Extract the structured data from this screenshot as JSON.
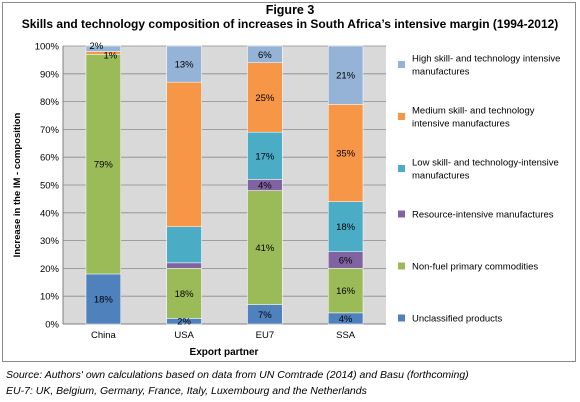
{
  "figure_label": "Figure 3",
  "source_note": "Source: Authors' own calculations based on data from UN Comtrade (2014) and Basu (forthcoming)",
  "eu7_note": "EU-7: UK, Belgium, Germany, France, Italy, Luxembourg and the Netherlands",
  "chart_data": {
    "type": "bar",
    "stacked": true,
    "title": "Skills and technology composition of increases in South Africa’s intensive margin (1994-2012)",
    "xlabel": "Export partner",
    "ylabel": "Increase in the IM - composition",
    "categories": [
      "China",
      "USA",
      "EU7",
      "SSA"
    ],
    "ylim": [
      0,
      100
    ],
    "yticks": [
      "0%",
      "10%",
      "20%",
      "30%",
      "40%",
      "50%",
      "60%",
      "70%",
      "80%",
      "90%",
      "100%"
    ],
    "grid": true,
    "legend_position": "right",
    "series": [
      {
        "name": "Unclassified products",
        "color": "#4f81bd",
        "values": [
          18,
          2,
          7,
          4
        ],
        "labels": [
          "18%",
          "2%",
          "7%",
          "4%"
        ]
      },
      {
        "name": "Non-fuel primary commodities",
        "color": "#9bbb59",
        "values": [
          79,
          18,
          41,
          16
        ],
        "labels": [
          "79%",
          "18%",
          "41%",
          "16%"
        ]
      },
      {
        "name": "Resource-intensive manufactures",
        "color": "#8064a2",
        "values": [
          0,
          2,
          4,
          6
        ],
        "labels": [
          "",
          "",
          "4%",
          "6%"
        ]
      },
      {
        "name": "Low skill- and technology-intensive manufactures",
        "color": "#4bacc6",
        "values": [
          0,
          13,
          17,
          18
        ],
        "labels": [
          "",
          "",
          "17%",
          "18%"
        ]
      },
      {
        "name": "Medium skill- and technology intensive manufactures",
        "color": "#f79646",
        "values": [
          1,
          52,
          25,
          35
        ],
        "labels": [
          "1%",
          "",
          "25%",
          "35%"
        ]
      },
      {
        "name": "High skill- and technology intensive manufactures",
        "color": "#95b3d7",
        "values": [
          2,
          13,
          6,
          21
        ],
        "labels": [
          "2%",
          "13%",
          "6%",
          "21%"
        ]
      }
    ],
    "legend": [
      {
        "series": 5,
        "lines": [
          "High skill- and technology intensive",
          "manufactures"
        ]
      },
      {
        "series": 4,
        "lines": [
          "Medium skill- and technology",
          "intensive manufactures"
        ]
      },
      {
        "series": 3,
        "lines": [
          "Low skill- and technology-intensive",
          "manufactures"
        ]
      },
      {
        "series": 2,
        "lines": [
          "Resource-intensive manufactures"
        ]
      },
      {
        "series": 1,
        "lines": [
          "Non-fuel primary commodities"
        ]
      },
      {
        "series": 0,
        "lines": [
          "Unclassified products"
        ]
      }
    ]
  }
}
